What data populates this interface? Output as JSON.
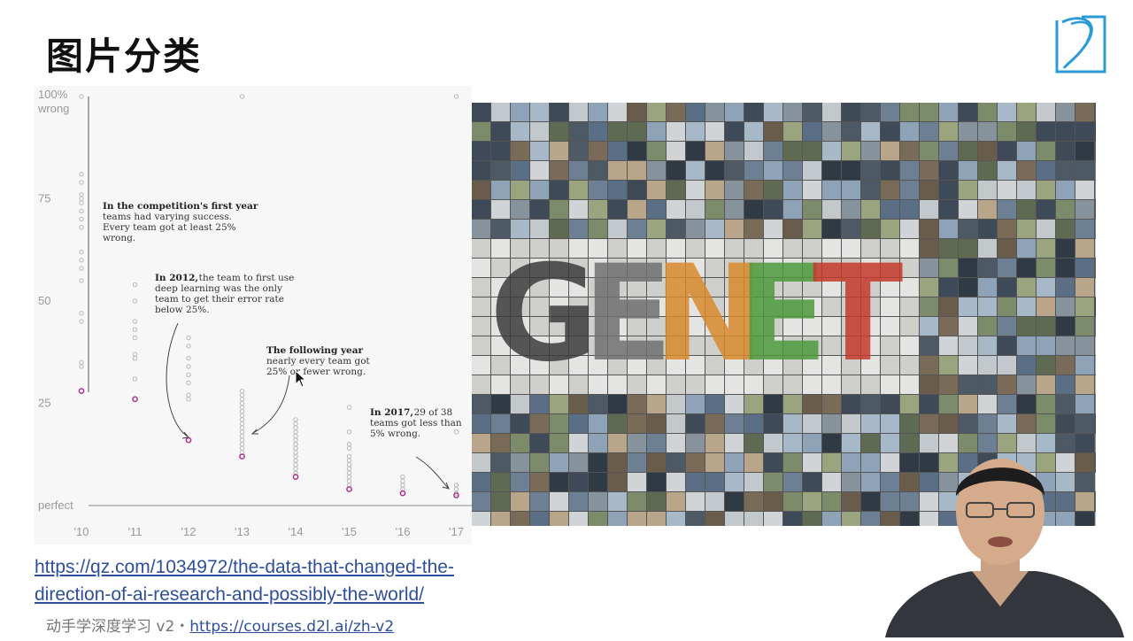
{
  "slide": {
    "title": "图片分类",
    "link_line1": "https://qz.com/1034972/the-data-that-changed-the-",
    "link_line2": "direction-of-ai-research-and-possibly-the-world/",
    "footer_text": "动手学深度学习 v2・",
    "footer_link": "https://courses.d2l.ai/zh-v2",
    "logo_icon": "d2l-logo-icon",
    "mosaic_icon": "imagenet-mosaic-image",
    "presenter_icon": "presenter-video-feed"
  },
  "chart_data": {
    "type": "scatter",
    "categories": [
      "'10",
      "'11",
      "'12",
      "'13",
      "'14",
      "'15",
      "'16",
      "'17"
    ],
    "y_ticks": [
      {
        "label": "100%",
        "label2": "wrong",
        "value": 100
      },
      {
        "label": "75",
        "value": 75
      },
      {
        "label": "50",
        "value": 50
      },
      {
        "label": "25",
        "value": 25
      },
      {
        "label": "perfect",
        "value": 0
      }
    ],
    "ylim": [
      0,
      100
    ],
    "best_team_error": [
      28,
      26,
      16,
      12,
      7,
      4,
      3,
      2.5
    ],
    "other_teams": [
      [
        100,
        81,
        79,
        76,
        75,
        74,
        72,
        70,
        68,
        62,
        60,
        58,
        55,
        47,
        45,
        35,
        34
      ],
      [
        54,
        50,
        45,
        43,
        41,
        37,
        36,
        31
      ],
      [
        41,
        39,
        36,
        34,
        32,
        30,
        27,
        26
      ],
      [
        28,
        27,
        26,
        25,
        24,
        23,
        22,
        21,
        20,
        19,
        18,
        17,
        16,
        15,
        14,
        13,
        100
      ],
      [
        21,
        20,
        19,
        18,
        17,
        16,
        15,
        14,
        13,
        12,
        11,
        10,
        9,
        8
      ],
      [
        24,
        18,
        15,
        14,
        12,
        11,
        10,
        9,
        8,
        7,
        6,
        5
      ],
      [
        7,
        6,
        5,
        4
      ],
      [
        100,
        18,
        5,
        4,
        3,
        3
      ]
    ],
    "annotations": [
      {
        "bold": "In the competition's first year",
        "lines": [
          "teams had varying success.",
          "Every team got at least 25%",
          "wrong."
        ]
      },
      {
        "bold": "In 2012,",
        "lines": [
          "the team to first use",
          "deep learning was the only",
          "team to get their error rate",
          "below 25%."
        ]
      },
      {
        "bold": "The following year",
        "lines": [
          "nearly every team got",
          "25% or fewer wrong."
        ]
      },
      {
        "bold": "In 2017,",
        "lines": [
          "29 of 38",
          "teams got less than",
          "5% wrong."
        ]
      }
    ],
    "colors": {
      "best": "#b0308f",
      "other": "#b8b8b8"
    }
  }
}
